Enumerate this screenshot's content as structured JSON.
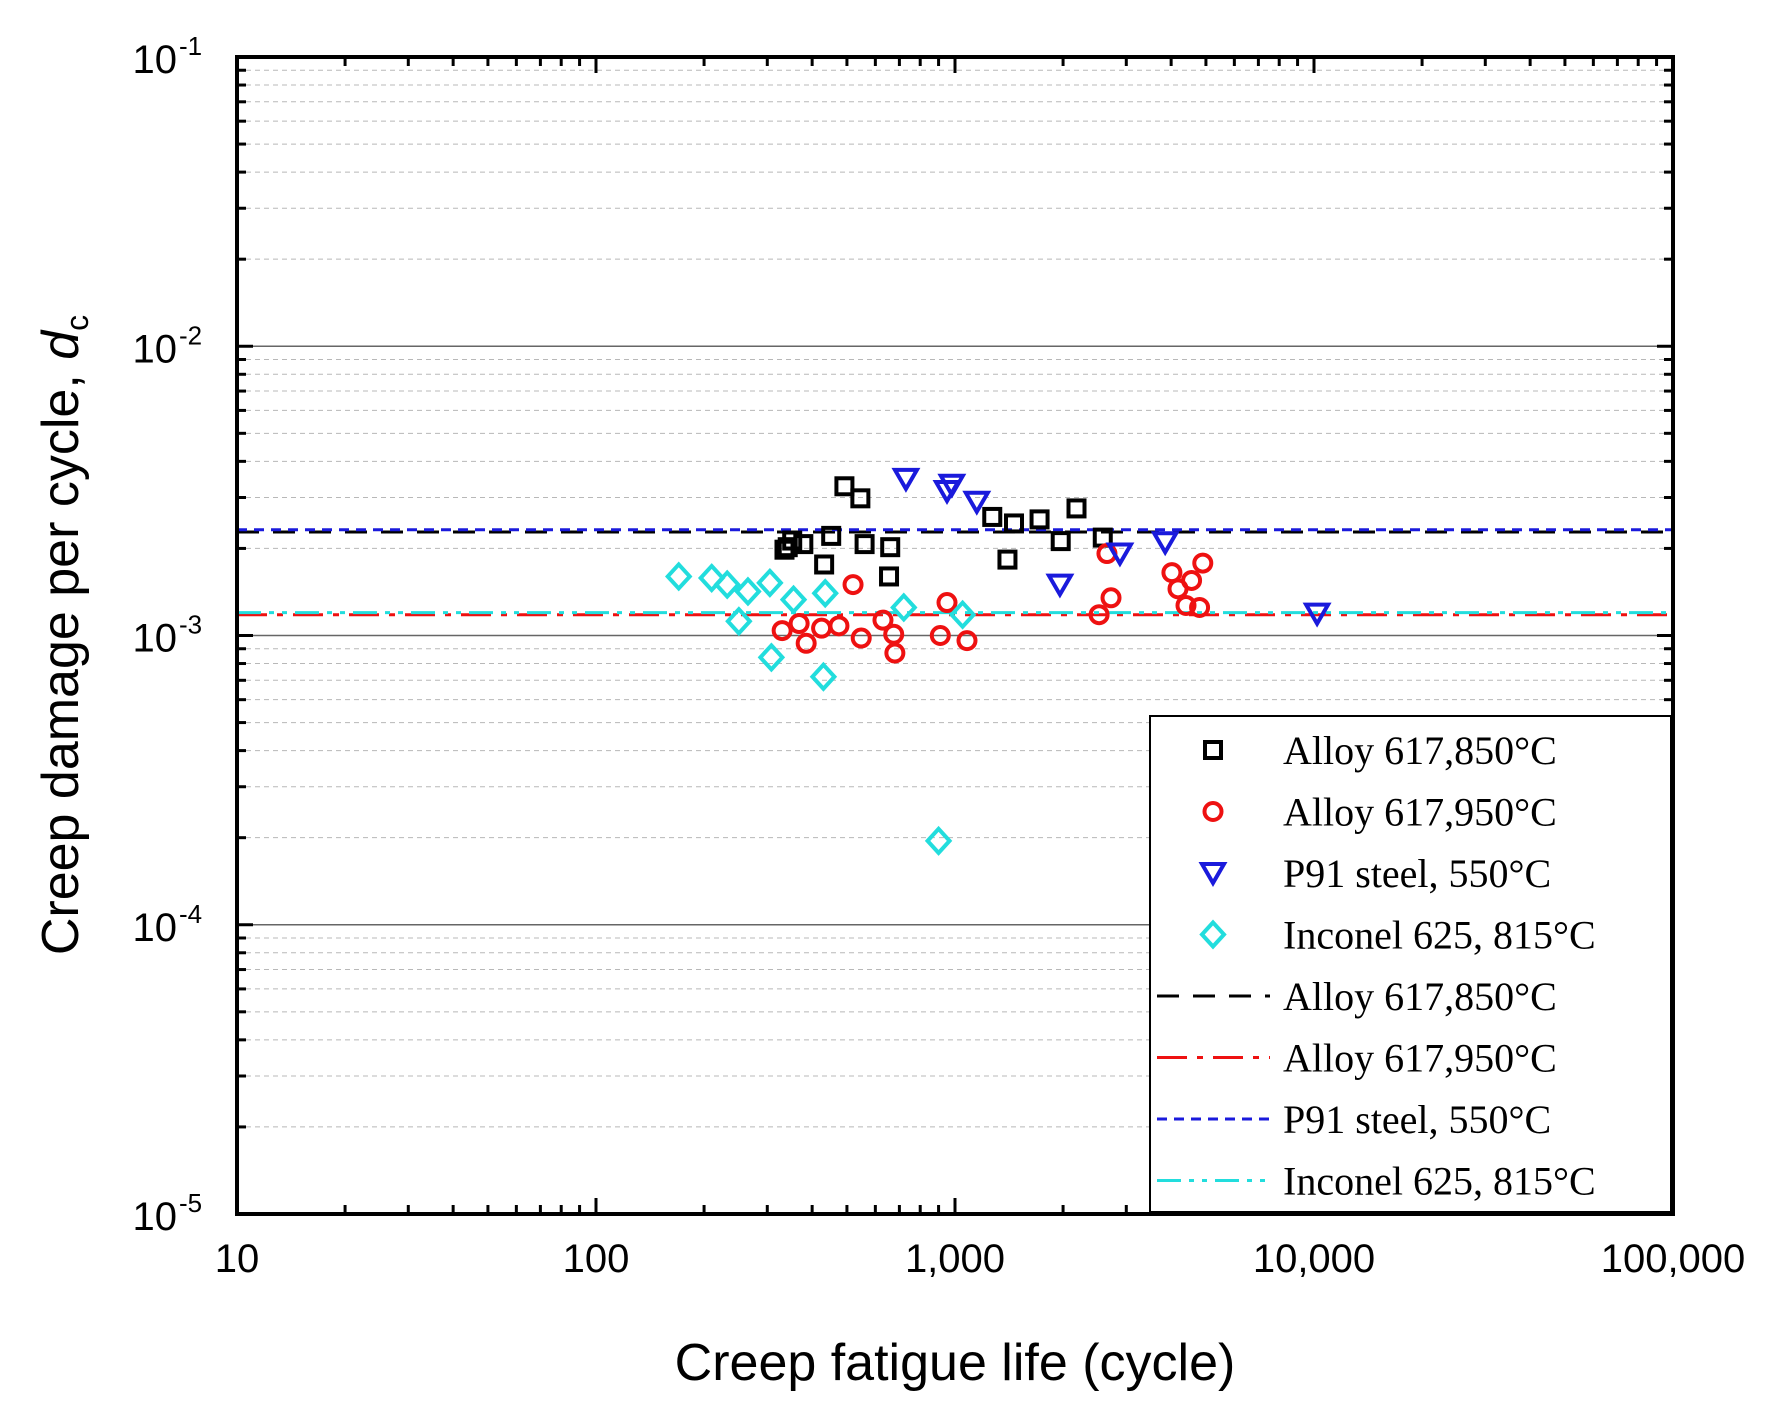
{
  "chart_data": {
    "type": "scatter",
    "x_scale": "log",
    "y_scale": "log",
    "xlim": [
      10,
      100000
    ],
    "ylim": [
      1e-05,
      0.1
    ],
    "xlabel": "Creep fatigue life (cycle)",
    "ylabel": "Creep damage per cycle, ",
    "ylabel_symbol": "d",
    "ylabel_subscript": "c",
    "x_ticks": [
      {
        "value": 10,
        "label": "10"
      },
      {
        "value": 100,
        "label": "100"
      },
      {
        "value": 1000,
        "label": "1,000"
      },
      {
        "value": 10000,
        "label": "10,000"
      },
      {
        "value": 100000,
        "label": "100,000"
      }
    ],
    "y_ticks": [
      {
        "value": 1e-05,
        "base": "10",
        "exp": "-5"
      },
      {
        "value": 0.0001,
        "base": "10",
        "exp": "-4"
      },
      {
        "value": 0.001,
        "base": "10",
        "exp": "-3"
      },
      {
        "value": 0.01,
        "base": "10",
        "exp": "-2"
      },
      {
        "value": 0.1,
        "base": "10",
        "exp": "-1"
      }
    ],
    "grid": true,
    "legend_position": "bottom-right",
    "series": [
      {
        "name": "Alloy 617,850°C",
        "marker": "square",
        "color": "#000000",
        "points": [
          [
            335,
            0.00198
          ],
          [
            342,
            0.00202
          ],
          [
            352,
            0.00213
          ],
          [
            378,
            0.00207
          ],
          [
            432,
            0.00176
          ],
          [
            452,
            0.00221
          ],
          [
            492,
            0.00328
          ],
          [
            545,
            0.00298
          ],
          [
            560,
            0.00207
          ],
          [
            655,
            0.0016
          ],
          [
            660,
            0.00202
          ],
          [
            1270,
            0.00257
          ],
          [
            1400,
            0.00183
          ],
          [
            1460,
            0.00244
          ],
          [
            1720,
            0.00252
          ],
          [
            1970,
            0.00212
          ],
          [
            2180,
            0.00275
          ],
          [
            2580,
            0.00218
          ]
        ]
      },
      {
        "name": "Alloy 617,950°C",
        "marker": "circle",
        "color": "#ee1111",
        "points": [
          [
            330,
            0.00104
          ],
          [
            368,
            0.0011
          ],
          [
            385,
            0.00094
          ],
          [
            425,
            0.00106
          ],
          [
            475,
            0.00108
          ],
          [
            520,
            0.0015
          ],
          [
            548,
            0.00098
          ],
          [
            630,
            0.00113
          ],
          [
            675,
            0.00101
          ],
          [
            680,
            0.00087
          ],
          [
            910,
            0.001
          ],
          [
            950,
            0.0013
          ],
          [
            1080,
            0.00096
          ],
          [
            2520,
            0.00118
          ],
          [
            2650,
            0.00192
          ],
          [
            2720,
            0.00135
          ],
          [
            4020,
            0.00165
          ],
          [
            4180,
            0.00145
          ],
          [
            4400,
            0.00127
          ],
          [
            4560,
            0.00155
          ],
          [
            4800,
            0.00125
          ],
          [
            4900,
            0.00178
          ]
        ]
      },
      {
        "name": "P91 steel, 550°C",
        "marker": "triangle-down",
        "color": "#1a1adc",
        "points": [
          [
            730,
            0.00348
          ],
          [
            950,
            0.00316
          ],
          [
            980,
            0.00332
          ],
          [
            1150,
            0.0029
          ],
          [
            1960,
            0.0015
          ],
          [
            2880,
            0.00192
          ],
          [
            3850,
            0.0021
          ],
          [
            10200,
            0.00119
          ]
        ]
      },
      {
        "name": "Inconel 625, 815°C",
        "marker": "diamond",
        "color": "#22dddd",
        "points": [
          [
            170,
            0.0016
          ],
          [
            210,
            0.00158
          ],
          [
            232,
            0.0015
          ],
          [
            250,
            0.00112
          ],
          [
            265,
            0.00142
          ],
          [
            305,
            0.00152
          ],
          [
            308,
            0.00084
          ],
          [
            355,
            0.00133
          ],
          [
            430,
            0.00072
          ],
          [
            435,
            0.0014
          ],
          [
            720,
            0.00125
          ],
          [
            1050,
            0.00118
          ],
          [
            900,
            0.000195
          ]
        ]
      }
    ],
    "reference_lines": [
      {
        "name": "Alloy 617,850°C",
        "y": 0.00228,
        "style": "dash",
        "color": "#000000"
      },
      {
        "name": "Alloy 617,950°C",
        "y": 0.00118,
        "style": "dash-dot",
        "color": "#ee1111"
      },
      {
        "name": "P91 steel, 550°C",
        "y": 0.00232,
        "style": "short-dash",
        "color": "#1a1adc"
      },
      {
        "name": "Inconel 625, 815°C",
        "y": 0.0012,
        "style": "dash-dot-dot",
        "color": "#22dddd"
      }
    ],
    "legend": [
      {
        "label": "Alloy 617,850°C",
        "kind": "marker",
        "marker": "square",
        "color": "#000000"
      },
      {
        "label": "Alloy 617,950°C",
        "kind": "marker",
        "marker": "circle",
        "color": "#ee1111"
      },
      {
        "label": "P91 steel, 550°C",
        "kind": "marker",
        "marker": "triangle-down",
        "color": "#1a1adc"
      },
      {
        "label": "Inconel 625, 815°C",
        "kind": "marker",
        "marker": "diamond",
        "color": "#22dddd"
      },
      {
        "label": "Alloy 617,850°C",
        "kind": "line",
        "style": "dash",
        "color": "#000000"
      },
      {
        "label": "Alloy 617,950°C",
        "kind": "line",
        "style": "dash-dot",
        "color": "#ee1111"
      },
      {
        "label": "P91 steel, 550°C",
        "kind": "line",
        "style": "short-dash",
        "color": "#1a1adc"
      },
      {
        "label": "Inconel 625, 815°C",
        "kind": "line",
        "style": "dash-dot-dot",
        "color": "#22dddd"
      }
    ]
  }
}
